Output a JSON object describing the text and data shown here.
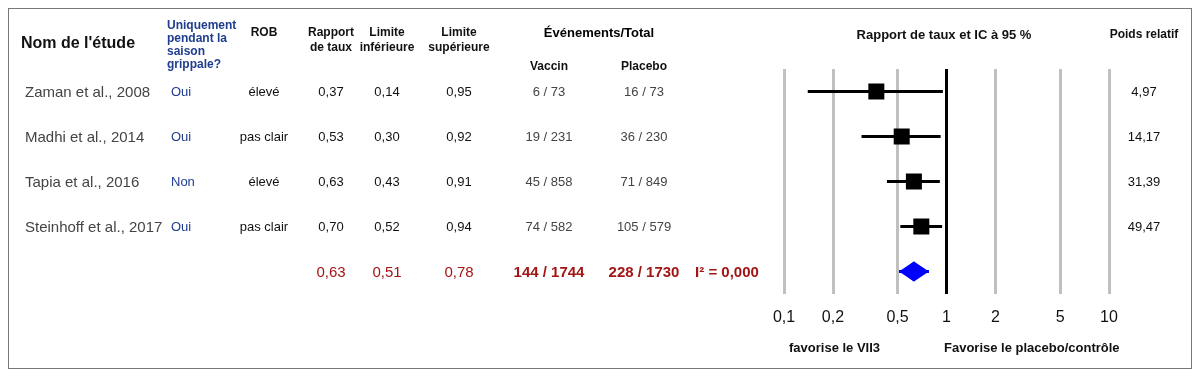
{
  "chart_data": [
    {
      "type": "other",
      "categories": [
        "Nom de l'étude",
        "Uniquement pendant la saison grippale?",
        "ROB",
        "Rapport de taux",
        "Limite inférieure",
        "Limite supérieure",
        "Vaccin",
        "Placebo",
        null,
        "Poids relatif"
      ],
      "annotations": [
        "Événements/Total"
      ],
      "cell_labels": [
        [
          "Zaman  et al., 2008",
          "Oui",
          "élevé",
          "0,37",
          "0,14",
          "0,95",
          "6 / 73",
          "16 / 73",
          null,
          "4,97"
        ],
        [
          "Madhi et al., 2014",
          "Oui",
          "pas clair",
          "0,53",
          "0,30",
          "0,92",
          "19 / 231",
          "36 / 230",
          null,
          "14,17"
        ],
        [
          "Tapia et al., 2016",
          "Non",
          "élevé",
          "0,63",
          "0,43",
          "0,91",
          "45 / 858",
          "71 / 849",
          null,
          "31,39"
        ],
        [
          "Steinhoff et al., 2017",
          "Oui",
          "pas clair",
          "0,70",
          "0,52",
          "0,94",
          "74 / 582",
          "105 / 579",
          null,
          "49,47"
        ],
        [
          null,
          null,
          null,
          "0,63",
          "0,51",
          "0,78",
          "144 / 1744",
          "228 / 1730",
          "I² = 0,000",
          null
        ]
      ]
    },
    {
      "type": "scatter",
      "title": "Rapport de taux et IC à 95 %",
      "categories": [
        null,
        null,
        null,
        null,
        null
      ],
      "orientation": "horizontal",
      "log": "x",
      "xlim": [
        0.1,
        10
      ],
      "xticks": [
        {
          "value": 0.1,
          "label": "0,1"
        },
        {
          "value": 0.2,
          "label": "0,2"
        },
        {
          "value": 0.5,
          "label": "0,5"
        },
        1,
        2,
        5,
        10
      ],
      "grid": "x",
      "tick_labels": "x",
      "ref_lines": [
        {
          "axis": "x",
          "value": 1,
          "color": "#000000"
        }
      ],
      "annotations": [
        "favorise le VII3",
        "Favorise le placebo/contrôle"
      ],
      "series": [
        {
          "color": "#000000",
          "marker": "square",
          "values": [
            0.37,
            0.53,
            0.63,
            0.7,
            null
          ],
          "errors": [
            [
              0.14,
              0.95
            ],
            [
              0.3,
              0.92
            ],
            [
              0.43,
              0.91
            ],
            [
              0.52,
              0.94
            ],
            null
          ]
        },
        {
          "color": "#0000ff",
          "marker": "diamond",
          "values": [
            null,
            null,
            null,
            null,
            0.63
          ],
          "errors": [
            null,
            null,
            null,
            null,
            [
              0.51,
              0.78
            ]
          ]
        }
      ]
    }
  ]
}
